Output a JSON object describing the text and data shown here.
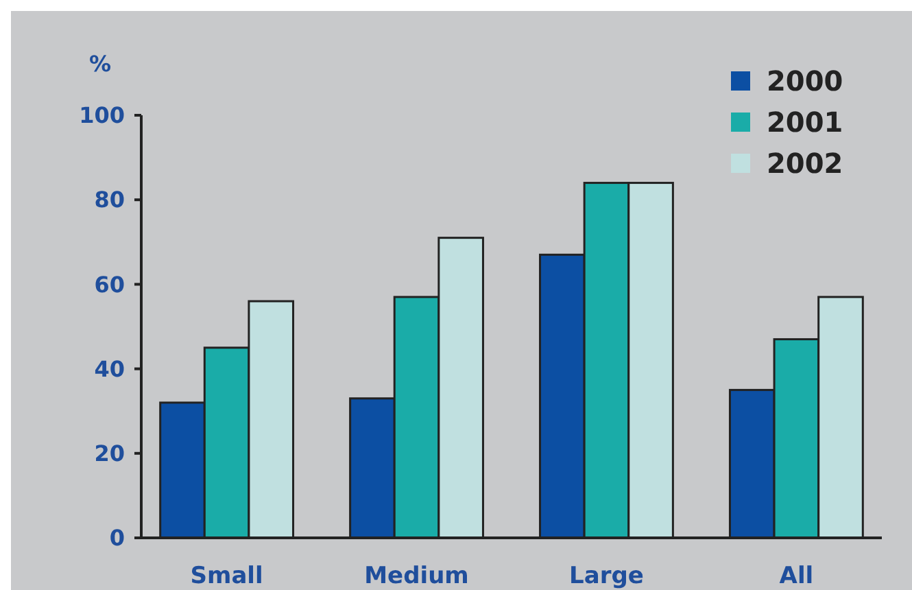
{
  "chart_data": {
    "type": "bar",
    "ylabel": "%",
    "categories": [
      "Small",
      "Medium",
      "Large",
      "All"
    ],
    "series": [
      {
        "name": "2000",
        "color": "#0c4fa3",
        "values": [
          32,
          33,
          67,
          35
        ]
      },
      {
        "name": "2001",
        "color": "#1aaca8",
        "values": [
          45,
          57,
          84,
          47
        ]
      },
      {
        "name": "2002",
        "color": "#c0e0e0",
        "values": [
          56,
          71,
          84,
          57
        ]
      }
    ],
    "ylim": [
      0,
      100
    ],
    "yticks": [
      0,
      20,
      40,
      60,
      80,
      100
    ],
    "legend": "top right"
  }
}
